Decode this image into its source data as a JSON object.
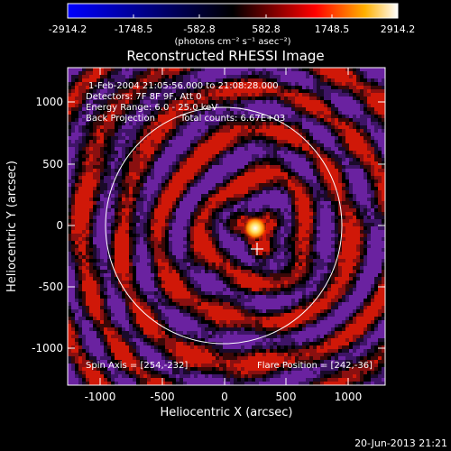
{
  "colorbar": {
    "ticks": [
      "-2914.2",
      "-1748.5",
      "-582.8",
      "582.8",
      "1748.5",
      "2914.2"
    ],
    "units": "(photons cm⁻² s⁻¹ asec⁻²)"
  },
  "title": "Reconstructed RHESSI Image",
  "annotations": {
    "time": "1-Feb-2004 21:05:56.000 to 21:08:28.000",
    "detectors": "Detectors: 7F 8F 9F, Att 0",
    "energy": "Energy Range: 6.0 - 25.0 keV",
    "method": "Back Projection",
    "counts": "Total counts: 6.67E+03",
    "spin_axis": "Spin Axis = [254,-232]",
    "flare_position": "Flare Position = [242,-36]"
  },
  "axes": {
    "xlabel": "Heliocentric X (arcsec)",
    "ylabel": "Heliocentric Y (arcsec)",
    "xticks": [
      "-1000",
      "-500",
      "0",
      "500",
      "1000"
    ],
    "yticks": [
      "1000",
      "500",
      "0",
      "-500",
      "-1000"
    ]
  },
  "footer": {
    "timestamp": "20-Jun-2013 21:21"
  },
  "colors": {
    "background": "#000000",
    "colormap": [
      "#0000ff",
      "#000000",
      "#ff0000",
      "#ffb000",
      "#ffffff"
    ]
  }
}
